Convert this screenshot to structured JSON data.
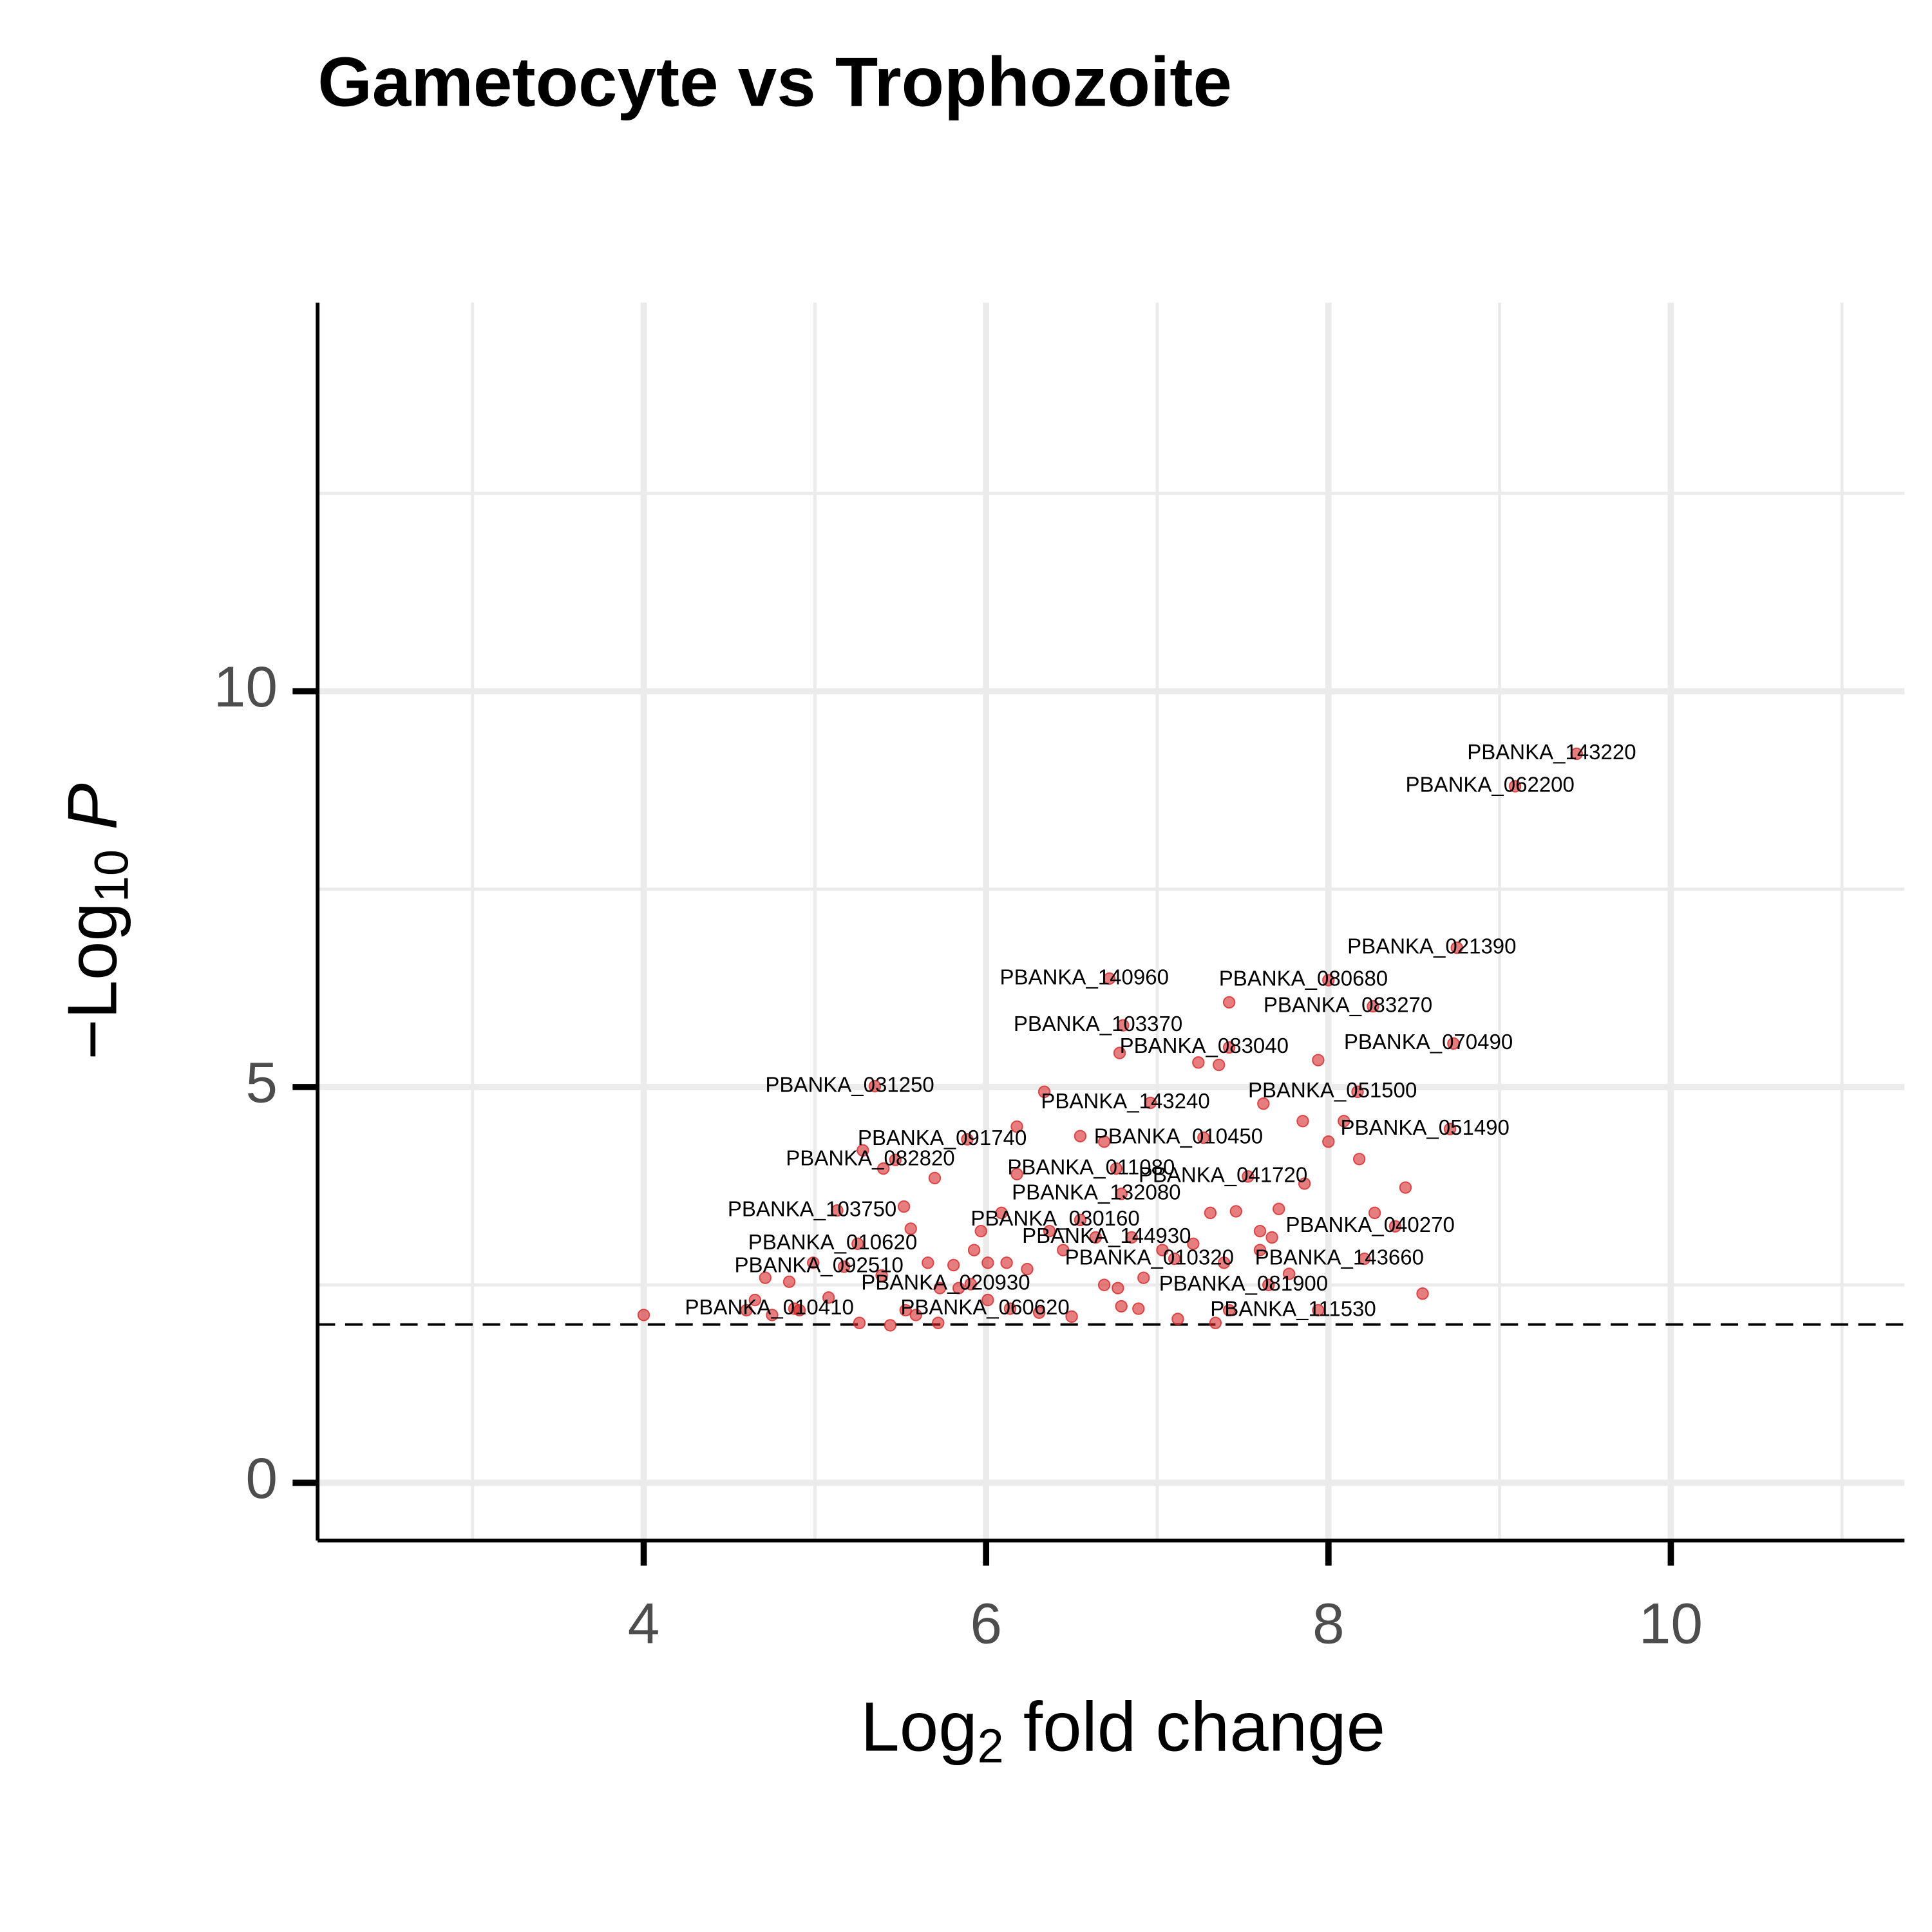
{
  "chart_data": {
    "type": "scatter",
    "title": "Gametocyte vs Trophozoite",
    "xlabel": {
      "base": "Log",
      "sub": "2",
      "rest": " fold change"
    },
    "ylabel": {
      "base": "−Log",
      "sub": "10",
      "rest": " P"
    },
    "x": [
      9.45,
      9.09,
      8.75,
      6.72,
      8.0,
      8.26,
      6.8,
      7.42,
      8.73,
      5.35,
      6.96,
      8.17,
      8.71,
      5.89,
      7.27,
      5.47,
      6.76,
      7.53,
      6.79,
      5.13,
      6.55,
      8.39,
      6.85,
      5.25,
      7.1,
      8.21,
      5.17,
      5.91,
      7.65,
      4.88,
      6.14,
      7.94,
      4.0,
      8.55,
      8.45,
      8.27,
      8.18,
      8.09,
      8.0,
      7.94,
      7.85,
      7.86,
      7.71,
      7.62,
      7.42,
      7.24,
      7.36,
      6.78,
      6.34,
      6.18,
      6.18,
      6.55,
      6.69,
      5.7,
      5.4,
      5.28,
      5.52,
      5.56,
      5.97,
      6.09,
      6.37,
      7.31,
      7.46,
      7.6,
      7.67,
      7.77,
      7.6,
      7.39,
      7.21,
      7.03,
      6.92,
      6.77,
      6.69,
      6.79,
      6.89,
      7.12,
      7.34,
      7.42,
      6.5,
      6.31,
      6.01,
      5.84,
      5.72,
      5.59,
      5.44,
      5.26,
      5.08,
      4.91,
      4.75,
      4.6,
      4.65,
      4.71,
      4.85,
      4.99,
      5.39,
      5.66,
      5.81,
      5.93,
      6.12,
      6.24,
      6.45,
      6.64,
      5.53,
      5.73,
      6.01
    ],
    "y": [
      9.21,
      8.8,
      6.76,
      6.37,
      6.35,
      6.02,
      5.78,
      5.5,
      5.55,
      5.01,
      4.8,
      4.94,
      4.47,
      4.34,
      4.36,
      4.08,
      3.97,
      3.87,
      3.65,
      3.44,
      3.32,
      3.24,
      3.1,
      3.02,
      2.83,
      2.83,
      2.73,
      2.51,
      2.5,
      2.2,
      2.2,
      2.18,
      2.12,
      2.39,
      3.73,
      3.41,
      4.09,
      4.57,
      4.31,
      5.34,
      4.57,
      3.78,
      3.46,
      4.79,
      6.07,
      5.31,
      5.28,
      5.43,
      4.94,
      4.5,
      3.9,
      4.38,
      4.31,
      3.85,
      3.97,
      4.2,
      3.49,
      3.21,
      3.18,
      3.41,
      3.18,
      3.41,
      3.43,
      3.18,
      3.1,
      2.64,
      2.94,
      2.78,
      3.02,
      2.94,
      2.59,
      2.46,
      2.5,
      2.23,
      2.2,
      2.07,
      2.02,
      2.18,
      2.1,
      2.15,
      2.31,
      2.46,
      2.02,
      2.12,
      1.99,
      2.02,
      2.34,
      2.18,
      2.12,
      2.18,
      2.31,
      2.59,
      2.54,
      2.78,
      2.62,
      2.78,
      2.75,
      2.94,
      2.78,
      2.7,
      2.94,
      3.1,
      2.18,
      2.46,
      2.78
    ],
    "labels": [
      "PBANKA_143220",
      "PBANKA_062200",
      "PBANKA_021390",
      "PBANKA_140960",
      "PBANKA_080680",
      "PBANKA_083270",
      "PBANKA_103370",
      "PBANKA_083040",
      "PBANKA_070490",
      "PBANKA_031250",
      "PBANKA_143240",
      "PBANKA_051500",
      "PBANKA_051490",
      "PBANKA_091740",
      "PBANKA_010450",
      "PBANKA_082820",
      "PBANKA_011080",
      "PBANKA_041720",
      "PBANKA_132080",
      "PBANKA_103750",
      "PBANKA_030160",
      "PBANKA_040270",
      "PBANKA_144930",
      "PBANKA_010620",
      "PBANKA_010320",
      "PBANKA_143660",
      "PBANKA_092510",
      "PBANKA_020930",
      "PBANKA_081900",
      "PBANKA_010410",
      "PBANKA_060620",
      "PBANKA_111530",
      null,
      null,
      null,
      null,
      null,
      null,
      null,
      null,
      null,
      null,
      null,
      null,
      null,
      null,
      null,
      null,
      null,
      null,
      null,
      null,
      null,
      null,
      null,
      null,
      null,
      null,
      null,
      null,
      null,
      null,
      null,
      null,
      null,
      null,
      null,
      null,
      null,
      null,
      null,
      null,
      null,
      null,
      null,
      null,
      null,
      null,
      null,
      null,
      null,
      null,
      null,
      null,
      null,
      null,
      null,
      null,
      null,
      null,
      null,
      null,
      null,
      null,
      null,
      null,
      null,
      null,
      null,
      null,
      null,
      null,
      null,
      null,
      null
    ],
    "color": "#d62728",
    "xlim": [
      2.095,
      11.365
    ],
    "ylim": [
      -0.73,
      14.91
    ],
    "xticks": [
      4,
      6,
      8,
      10
    ],
    "yticks": [
      0,
      5,
      10
    ],
    "x_minor_grid": [
      3,
      5,
      7,
      9,
      11
    ],
    "y_minor_grid": [
      2.5,
      7.5,
      12.5
    ],
    "threshold_y": 2,
    "grid": true
  }
}
